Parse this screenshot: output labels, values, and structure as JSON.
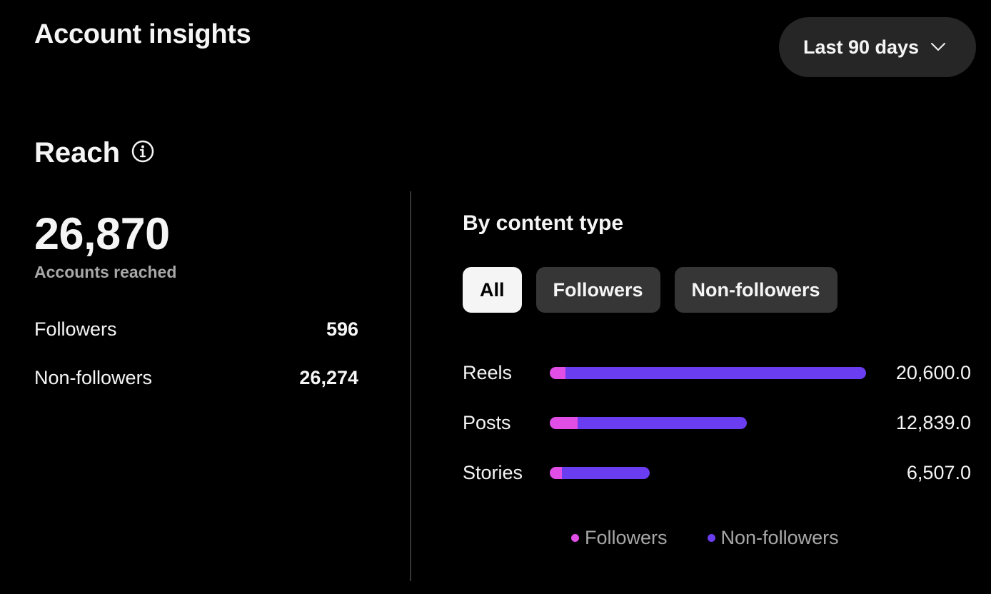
{
  "header": {
    "title": "Account insights",
    "date_range": "Last 90 days"
  },
  "reach": {
    "title": "Reach",
    "total": "26,870",
    "total_caption": "Accounts reached",
    "rows": [
      {
        "label": "Followers",
        "value": "596"
      },
      {
        "label": "Non-followers",
        "value": "26,274"
      }
    ]
  },
  "content_type": {
    "title": "By content type",
    "filters": [
      {
        "label": "All",
        "active": true
      },
      {
        "label": "Followers",
        "active": false
      },
      {
        "label": "Non-followers",
        "active": false
      }
    ],
    "legend": [
      {
        "label": "Followers",
        "color": "#e14ee6"
      },
      {
        "label": "Non-followers",
        "color": "#6b3df0"
      }
    ]
  },
  "colors": {
    "followers": "#e14ee6",
    "non_followers": "#6b3df0",
    "background": "#000000",
    "chip_inactive": "#363636"
  },
  "icons": {
    "info": "info-icon",
    "dropdown": "chevron-down-icon"
  },
  "chart_data": {
    "type": "bar",
    "orientation": "horizontal",
    "stacked": true,
    "categories": [
      "Reels",
      "Posts",
      "Stories"
    ],
    "value_labels": [
      "20,600.0",
      "12,839.0",
      "6,507.0"
    ],
    "values": [
      20600,
      12839,
      6507
    ],
    "series": [
      {
        "name": "Followers",
        "values": [
          1030,
          1800,
          780
        ]
      },
      {
        "name": "Non-followers",
        "values": [
          19570,
          11039,
          5727
        ]
      }
    ],
    "legend_position": "bottom",
    "grid": false
  }
}
